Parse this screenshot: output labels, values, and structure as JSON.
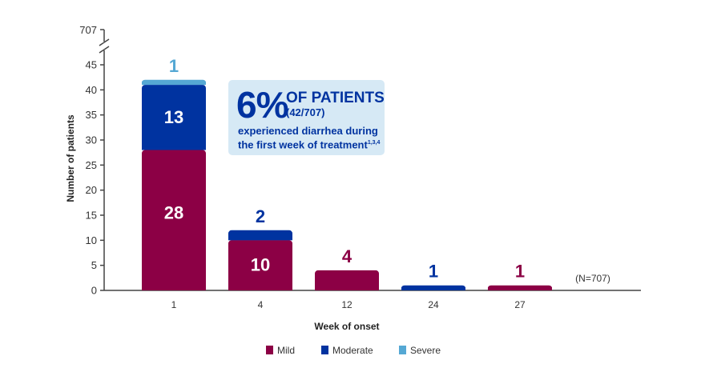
{
  "chart_data": {
    "type": "bar",
    "stacked": true,
    "xlabel": "Week of onset",
    "ylabel": "Number of patients",
    "categories": [
      "1",
      "4",
      "12",
      "24",
      "27"
    ],
    "series": [
      {
        "name": "Mild",
        "color": "#8c0045",
        "values": [
          28,
          10,
          4,
          0,
          1
        ]
      },
      {
        "name": "Moderate",
        "color": "#0033a0",
        "values": [
          13,
          2,
          0,
          1,
          0
        ]
      },
      {
        "name": "Severe",
        "color": "#55a8d4",
        "values": [
          1,
          0,
          0,
          0,
          0
        ]
      }
    ],
    "ylim": [
      0,
      45
    ],
    "yticks": [
      0,
      5,
      10,
      15,
      20,
      25,
      30,
      35,
      40,
      45
    ],
    "axis_break_label": "707",
    "n_label": "(N=707)",
    "grid": false,
    "legend_position": "bottom",
    "callout": {
      "big": "6%",
      "headline": "OF PATIENTS",
      "fraction": "(42/707)",
      "description": "experienced diarrhea during the first week of treatment",
      "superscript": "1,3,4"
    }
  }
}
